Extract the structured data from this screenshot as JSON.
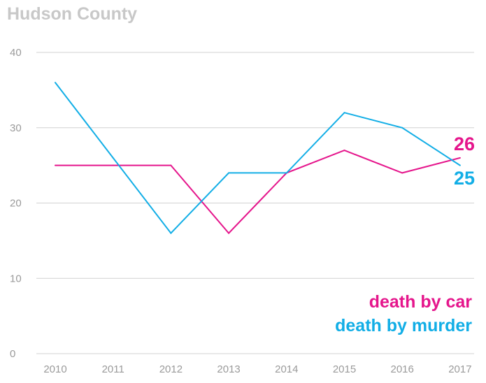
{
  "chart_data": {
    "type": "line",
    "title": "Hudson County",
    "xlabel": "",
    "ylabel": "",
    "categories": [
      "2010",
      "2011",
      "2012",
      "2013",
      "2014",
      "2015",
      "2016",
      "2017"
    ],
    "ylim": [
      0,
      40
    ],
    "yticks": [
      0,
      10,
      20,
      30,
      40
    ],
    "ytick_labels": [
      "0",
      "10",
      "20",
      "30",
      "40"
    ],
    "grid": true,
    "legend_position": "bottom-right",
    "series": [
      {
        "name": "death by car",
        "color": "#e5168c",
        "values": [
          25,
          25,
          25,
          16,
          24,
          27,
          24,
          26
        ],
        "end_label": "26"
      },
      {
        "name": "death by murder",
        "color": "#12aee6",
        "values": [
          36,
          26,
          16,
          24,
          24,
          32,
          30,
          25
        ],
        "end_label": "25"
      }
    ]
  }
}
